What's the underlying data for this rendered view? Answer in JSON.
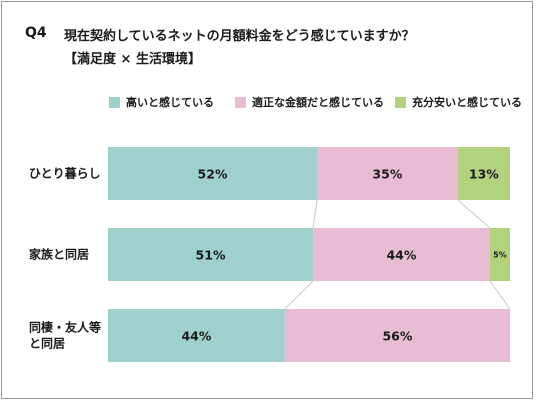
{
  "question_no": "Q4",
  "title": "現在契約しているネットの月額料金をどう感じていますか？",
  "subtitle": "【満足度 × 生活環境】",
  "chart_data": {
    "type": "bar",
    "orientation": "horizontal",
    "stacked": "100%",
    "legend_position": "top",
    "categories": [
      [
        "ひとり暮らし"
      ],
      [
        "家族と同居"
      ],
      [
        "同棲・友人等",
        "と同居"
      ]
    ],
    "series": [
      {
        "name": "高いと感じている",
        "color": "#9fd0cc",
        "values": [
          52,
          51,
          44
        ]
      },
      {
        "name": "適正な金額だと感じている",
        "color": "#e8bcd2",
        "values": [
          35,
          44,
          56
        ]
      },
      {
        "name": "充分安いと感じている",
        "color": "#b3d27e",
        "values": [
          13,
          5,
          0
        ]
      }
    ],
    "data_labels": [
      [
        "52%",
        "51%",
        "44%"
      ],
      [
        "35%",
        "44%",
        "56%"
      ],
      [
        "13%",
        "5%",
        ""
      ]
    ]
  }
}
